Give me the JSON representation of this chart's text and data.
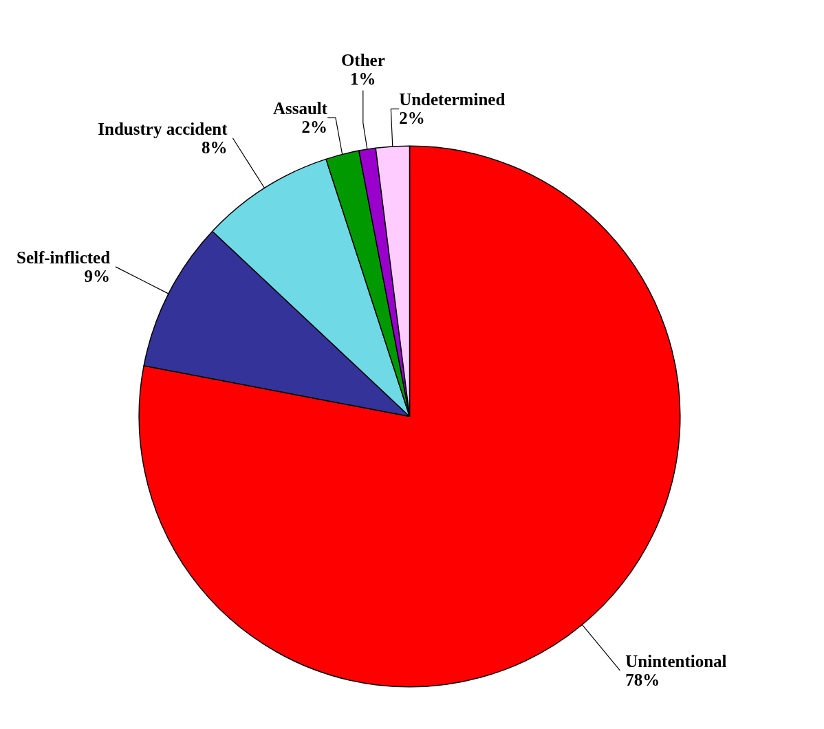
{
  "chart_data": {
    "type": "pie",
    "categories": [
      "Unintentional",
      "Self-inflicted",
      "Industry accident",
      "Assault",
      "Other",
      "Undetermined"
    ],
    "values": [
      78,
      9,
      8,
      2,
      1,
      2
    ],
    "value_labels": [
      "78%",
      "9%",
      "8%",
      "2%",
      "1%",
      "2%"
    ],
    "colors": [
      "#ff0000",
      "#333399",
      "#6fd9e6",
      "#009900",
      "#9900cc",
      "#ffccff"
    ]
  }
}
